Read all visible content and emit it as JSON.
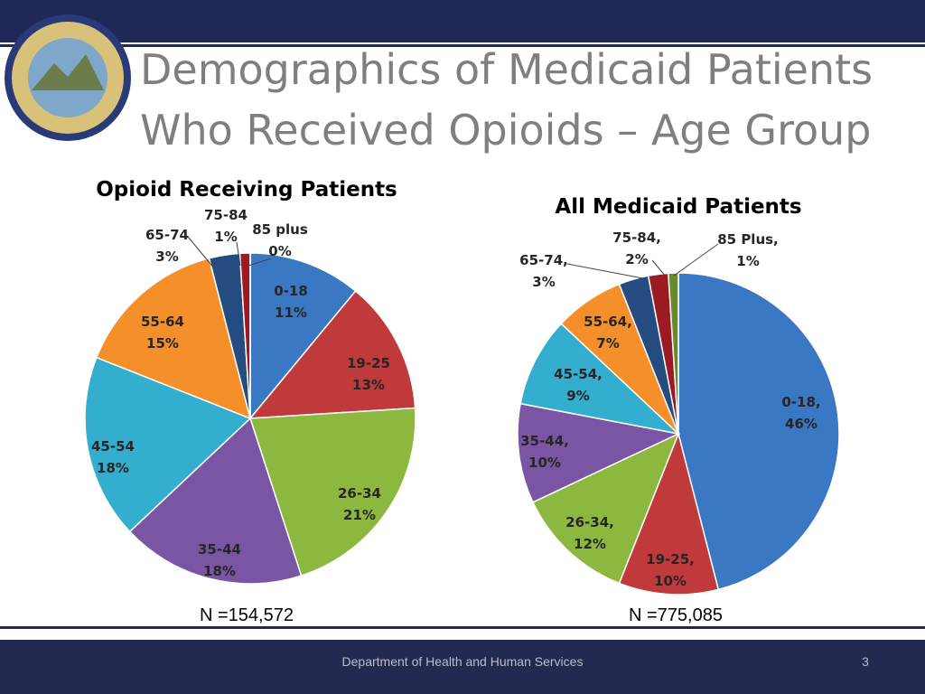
{
  "slide": {
    "title_lines": [
      "Demographics of Medicaid Patients",
      "Who Received Opioids – Age Group"
    ],
    "footer": "Department of Health and Human Services",
    "page_number": 3
  },
  "chart_data": [
    {
      "type": "pie",
      "title": "Opioid Receiving Patients",
      "annotation": "N =154,572",
      "categories": [
        "0-18",
        "19-25",
        "26-34",
        "35-44",
        "45-54",
        "55-64",
        "65-74",
        "75-84",
        "85 plus"
      ],
      "values": [
        11,
        13,
        21,
        18,
        18,
        15,
        3,
        1,
        0
      ],
      "value_labels": [
        "11%",
        "13%",
        "21%",
        "18%",
        "18%",
        "15%",
        "3%",
        "1%",
        "0%"
      ],
      "colors": [
        "#3b78c3",
        "#c0393b",
        "#8cb83f",
        "#7a55a4",
        "#33aecf",
        "#f58f2a",
        "#254c80",
        "#9c1b22",
        "#6a8a2a"
      ]
    },
    {
      "type": "pie",
      "title": "All Medicaid Patients",
      "annotation": "N =775,085",
      "categories": [
        "0-18,",
        "19-25,",
        "26-34,",
        "35-44,",
        "45-54,",
        "55-64,",
        "65-74,",
        "75-84,",
        "85 Plus,"
      ],
      "values": [
        46,
        10,
        12,
        10,
        9,
        7,
        3,
        2,
        1
      ],
      "value_labels": [
        "46%",
        "10%",
        "12%",
        "10%",
        "9%",
        "7%",
        "3%",
        "2%",
        "1%"
      ],
      "colors": [
        "#3b78c3",
        "#c0393b",
        "#8cb83f",
        "#7a55a4",
        "#33aecf",
        "#f58f2a",
        "#254c80",
        "#9c1b22",
        "#6a8a2a"
      ]
    }
  ]
}
